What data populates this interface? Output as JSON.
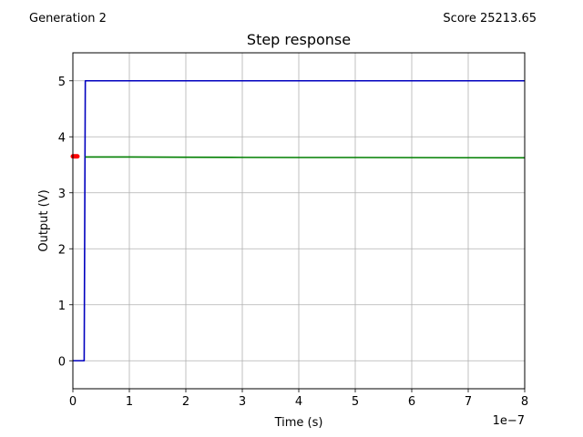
{
  "header": {
    "generation_label": "Generation 2",
    "score_label": "Score 25213.65"
  },
  "chart_data": {
    "type": "line",
    "title": "Step response",
    "xlabel": "Time (s)",
    "ylabel": "Output (V)",
    "x_offset_label": "1e−7",
    "xlim": [
      0,
      8
    ],
    "ylim": [
      -0.5,
      5.5
    ],
    "x_ticks": [
      0,
      1,
      2,
      3,
      4,
      5,
      6,
      7,
      8
    ],
    "y_ticks": [
      0,
      1,
      2,
      3,
      4,
      5
    ],
    "grid": true,
    "series": [
      {
        "color": "#0000bf",
        "style": "line",
        "x": [
          0.0,
          0.2,
          0.22,
          8.0
        ],
        "y": [
          0.0,
          0.0,
          5.0,
          5.0
        ]
      },
      {
        "color": "#007f00",
        "style": "line",
        "x": [
          0.22,
          1.0,
          2.0,
          3.0,
          4.0,
          5.0,
          6.0,
          7.0,
          8.0
        ],
        "y": [
          3.64,
          3.64,
          3.635,
          3.632,
          3.63,
          3.63,
          3.628,
          3.626,
          3.625
        ]
      },
      {
        "color": "#ff0000",
        "style": "markers",
        "x": [
          0.0,
          0.02,
          0.04,
          0.06,
          0.08
        ],
        "y": [
          3.65,
          3.65,
          3.65,
          3.65,
          3.65
        ]
      }
    ]
  }
}
